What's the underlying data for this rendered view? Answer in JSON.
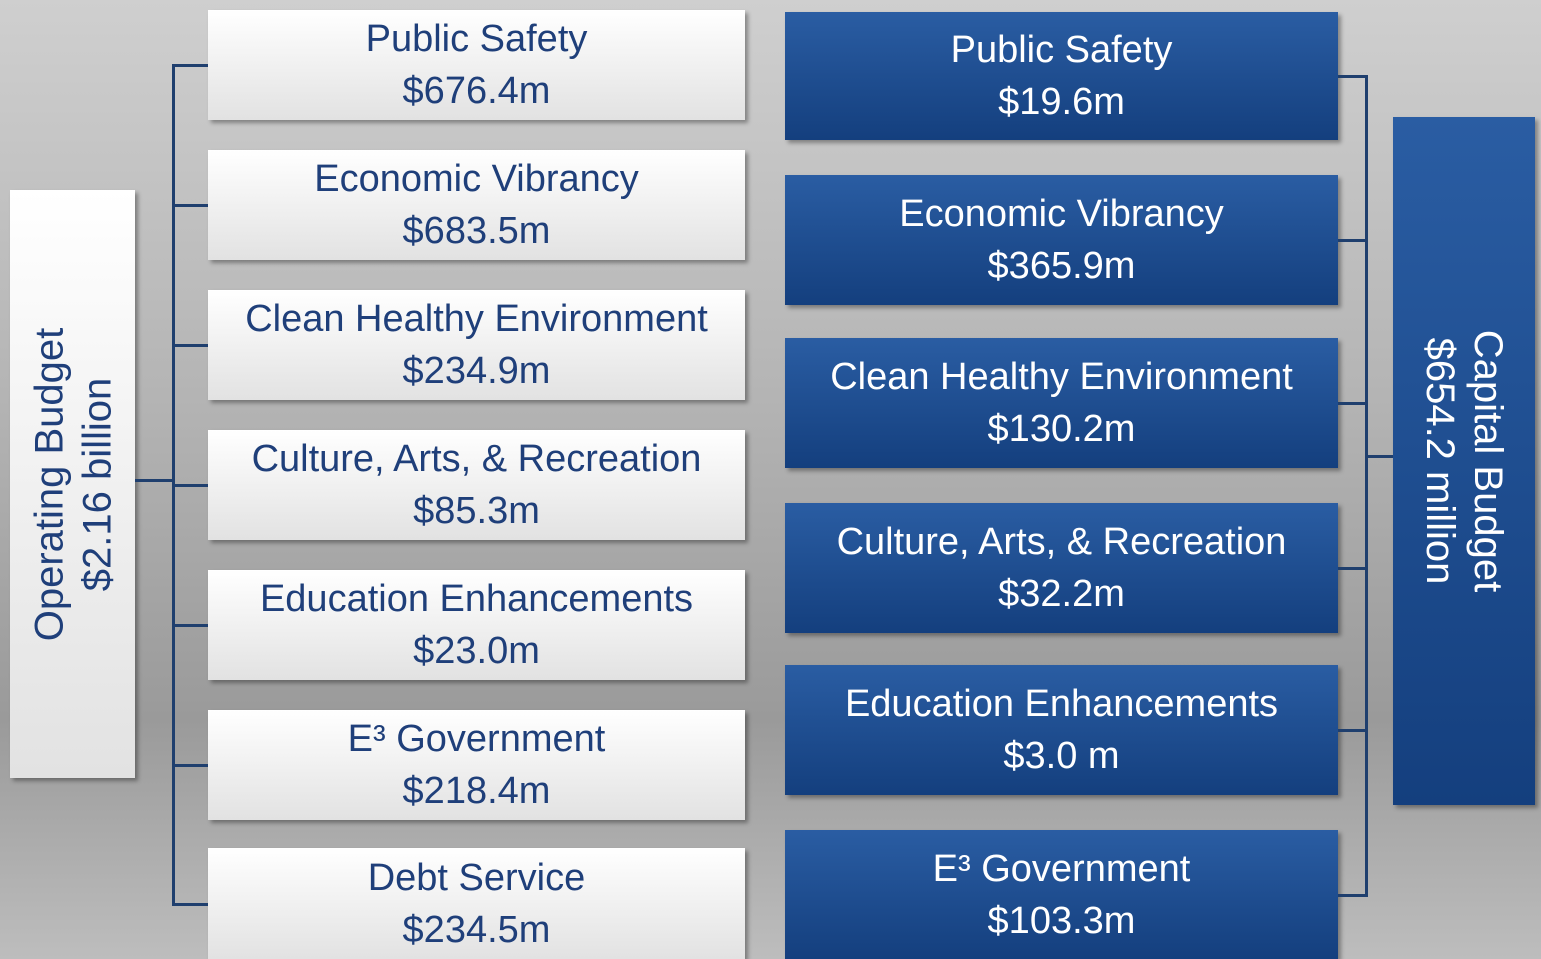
{
  "operating": {
    "title": "Operating Budget",
    "total": "$2.16 billion",
    "items": [
      {
        "label": "Public Safety",
        "amount": "$676.4m"
      },
      {
        "label": "Economic Vibrancy",
        "amount": "$683.5m"
      },
      {
        "label": "Clean Healthy Environment",
        "amount": "$234.9m"
      },
      {
        "label": "Culture, Arts, & Recreation",
        "amount": "$85.3m"
      },
      {
        "label": "Education Enhancements",
        "amount": "$23.0m"
      },
      {
        "label": "E³ Government",
        "amount": "$218.4m"
      },
      {
        "label": "Debt Service",
        "amount": "$234.5m"
      }
    ]
  },
  "capital": {
    "title": "Capital Budget",
    "total": "$654.2 million",
    "items": [
      {
        "label": "Public Safety",
        "amount": "$19.6m"
      },
      {
        "label": "Economic Vibrancy",
        "amount": "$365.9m"
      },
      {
        "label": "Clean Healthy Environment",
        "amount": "$130.2m"
      },
      {
        "label": "Culture, Arts, & Recreation",
        "amount": "$32.2m"
      },
      {
        "label": "Education Enhancements",
        "amount": "$3.0 m"
      },
      {
        "label": "E³ Government",
        "amount": "$103.3m"
      }
    ]
  }
}
